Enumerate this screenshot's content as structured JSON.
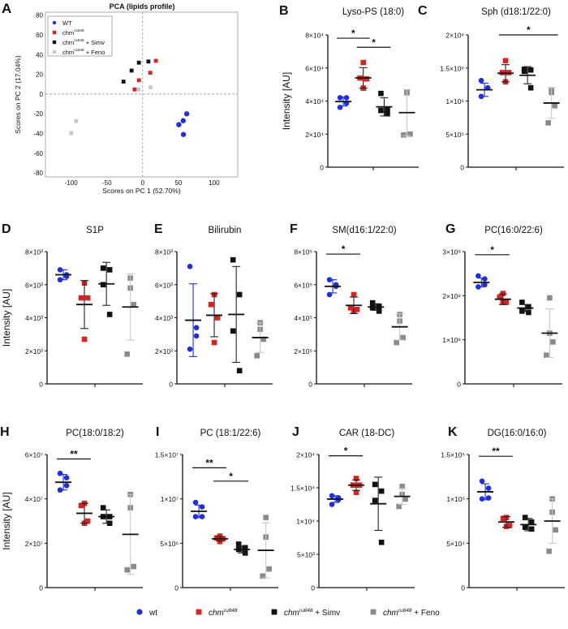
{
  "colors": {
    "wt": "#1f2fe0",
    "chm": "#d8231e",
    "simv": "#111111",
    "feno": "#8a8a8a",
    "feno_light": "#c8c8c8"
  },
  "legend": [
    {
      "key": "wt",
      "base": "wt",
      "sup": "",
      "suffix": "",
      "marker": "circle"
    },
    {
      "key": "chm",
      "base": "chm",
      "sup": "ru848",
      "suffix": "",
      "marker": "square"
    },
    {
      "key": "simv",
      "base": "chm",
      "sup": "ru848",
      "suffix": " + Simv",
      "marker": "square"
    },
    {
      "key": "feno",
      "base": "chm",
      "sup": "ru848",
      "suffix": " + Feno",
      "marker": "square"
    }
  ],
  "chart_data": [
    {
      "panel": "A",
      "type": "scatter",
      "title": "PCA (lipids profile)",
      "xlabel": "Scores on PC 1 (52.70%)",
      "ylabel": "Scores on PC 2 (17.04%)",
      "xlim": [
        -136,
        133
      ],
      "ylim": [
        -84,
        83
      ],
      "xticks": [
        -100,
        -50,
        0,
        50,
        100
      ],
      "yticks": [
        -80,
        -60,
        -40,
        -20,
        0,
        20,
        40,
        60,
        80
      ],
      "zero_lines": "dashed",
      "legend_position": "top-left",
      "series": [
        {
          "key": "wt",
          "name": "WT",
          "sup": "",
          "suffix": "",
          "marker": "circle",
          "points": [
            [
              61.6,
              -20
            ],
            [
              56.7,
              -27
            ],
            [
              50.6,
              -31
            ],
            [
              57,
              -41
            ]
          ]
        },
        {
          "key": "chm",
          "name": "chm",
          "sup": "ru848",
          "suffix": "",
          "marker": "square",
          "points": [
            [
              18.5,
              33.7
            ],
            [
              10.6,
              21.6
            ],
            [
              -5.3,
              14
            ],
            [
              -11.3,
              4.7
            ]
          ]
        },
        {
          "key": "simv",
          "name": "chm",
          "sup": "ru848",
          "suffix": " + Simv",
          "marker": "square",
          "points": [
            [
              8,
              33
            ],
            [
              -5.3,
              31.8
            ],
            [
              -15.5,
              23.8
            ],
            [
              -26.8,
              12.6
            ]
          ]
        },
        {
          "key": "feno_light",
          "name": "chm",
          "sup": "ru848",
          "suffix": " + Feno",
          "marker": "square",
          "points": [
            [
              11,
              6.8
            ],
            [
              -5.7,
              4.7
            ],
            [
              -93,
              -27.4
            ],
            [
              -100,
              -39.7
            ]
          ]
        }
      ]
    },
    {
      "panel": "B",
      "type": "scatter",
      "title": "Lyso-PS (18:0)",
      "ylabel": "Intensity [AU]",
      "ylim": [
        0,
        80000
      ],
      "yticks": [
        {
          "v": 0,
          "label": "0"
        },
        {
          "v": 20000,
          "label": "2×10⁴"
        },
        {
          "v": 40000,
          "label": "4×10⁴"
        },
        {
          "v": 60000,
          "label": "6×10⁴"
        },
        {
          "v": 80000,
          "label": "8×10⁴"
        }
      ],
      "groups": [
        {
          "key": "wt",
          "values": [
            42000,
            42000,
            38700,
            36200
          ],
          "mean": 39700,
          "sd": 2700
        },
        {
          "key": "chm",
          "values": [
            63300,
            53900,
            53400,
            47800
          ],
          "mean": 54000,
          "sd": 6200
        },
        {
          "key": "simv",
          "values": [
            44600,
            34600,
            34300,
            32300
          ],
          "mean": 36500,
          "sd": 5500
        },
        {
          "key": "feno",
          "values": [
            45300,
            45000,
            20000,
            19500
          ],
          "mean": 33000,
          "sd": 14000
        }
      ],
      "significance": [
        {
          "from": 0,
          "to": 1,
          "label": "*",
          "y": 78000
        },
        {
          "from": 1,
          "to": 2,
          "label": "*",
          "y": 72500
        }
      ]
    },
    {
      "panel": "C",
      "type": "scatter",
      "title": "Sph (d18:1/22:0)",
      "ylabel": "",
      "ylim": [
        0,
        2000000
      ],
      "yticks": [
        {
          "v": 0,
          "label": "0"
        },
        {
          "v": 500000,
          "label": "5×10⁵"
        },
        {
          "v": 1000000,
          "label": "1×10⁶"
        },
        {
          "v": 1500000,
          "label": "1.5×10⁶"
        },
        {
          "v": 2000000,
          "label": "2×10⁶"
        }
      ],
      "groups": [
        {
          "key": "wt",
          "values": [
            1310000,
            1200000,
            1200000,
            1070000
          ],
          "mean": 1170000,
          "sd": 100000
        },
        {
          "key": "chm",
          "values": [
            1610000,
            1430000,
            1430000,
            1290000
          ],
          "mean": 1420000,
          "sd": 130000
        },
        {
          "key": "simv",
          "values": [
            1480000,
            1470000,
            1450000,
            1200000
          ],
          "mean": 1390000,
          "sd": 130000
        },
        {
          "key": "feno",
          "values": [
            1170000,
            1130000,
            930000,
            670000
          ],
          "mean": 970000,
          "sd": 230000
        }
      ],
      "significance": [
        {
          "from": 1,
          "to": 3,
          "label": "*",
          "y": 2000000
        }
      ]
    },
    {
      "panel": "D",
      "type": "scatter",
      "title": "S1P",
      "ylabel": "Intensity [AU]",
      "ylim": [
        0,
        8000
      ],
      "yticks": [
        {
          "v": 0,
          "label": "0"
        },
        {
          "v": 2000,
          "label": "2×10³"
        },
        {
          "v": 4000,
          "label": "4×10³"
        },
        {
          "v": 6000,
          "label": "6×10³"
        },
        {
          "v": 8000,
          "label": "8×10³"
        }
      ],
      "groups": [
        {
          "key": "wt",
          "values": [
            6900,
            6600,
            6500,
            6300
          ],
          "mean": 6600,
          "sd": 300
        },
        {
          "key": "chm",
          "values": [
            6100,
            5200,
            5200,
            2700
          ],
          "mean": 4800,
          "sd": 1450
        },
        {
          "key": "simv",
          "values": [
            7000,
            6900,
            6000,
            4200
          ],
          "mean": 6050,
          "sd": 1300
        },
        {
          "key": "feno",
          "values": [
            6400,
            5800,
            4800,
            1800
          ],
          "mean": 4650,
          "sd": 2000
        }
      ],
      "significance": []
    },
    {
      "panel": "E",
      "type": "scatter",
      "title": "Bilirubin",
      "ylabel": "",
      "ylim": [
        0,
        8000
      ],
      "yticks": [
        {
          "v": 0,
          "label": "0"
        },
        {
          "v": 2000,
          "label": "2×10³"
        },
        {
          "v": 4000,
          "label": "4×10³"
        },
        {
          "v": 6000,
          "label": "6×10³"
        },
        {
          "v": 8000,
          "label": "8×10³"
        }
      ],
      "groups": [
        {
          "key": "wt",
          "values": [
            7100,
            3400,
            2900,
            2100
          ],
          "mean": 3850,
          "sd": 2200
        },
        {
          "key": "chm",
          "values": [
            5400,
            4800,
            4000,
            2500
          ],
          "mean": 4150,
          "sd": 1300
        },
        {
          "key": "simv",
          "values": [
            7500,
            5400,
            3200,
            800
          ],
          "mean": 4200,
          "sd": 2900
        },
        {
          "key": "feno",
          "values": [
            3700,
            3300,
            2700,
            1700
          ],
          "mean": 2800,
          "sd": 900
        }
      ],
      "significance": []
    },
    {
      "panel": "F",
      "type": "scatter",
      "title": "SM(d16:1/22:0)",
      "ylabel": "",
      "ylim": [
        0,
        800000
      ],
      "yticks": [
        {
          "v": 0,
          "label": "0"
        },
        {
          "v": 200000,
          "label": "2×10⁵"
        },
        {
          "v": 400000,
          "label": "4×10⁵"
        },
        {
          "v": 600000,
          "label": "6×10⁵"
        },
        {
          "v": 800000,
          "label": "8×10⁵"
        }
      ],
      "groups": [
        {
          "key": "wt",
          "values": [
            630000,
            600000,
            590000,
            540000
          ],
          "mean": 590000,
          "sd": 40000
        },
        {
          "key": "chm",
          "values": [
            540000,
            460000,
            450000,
            440000
          ],
          "mean": 475000,
          "sd": 50000
        },
        {
          "key": "simv",
          "values": [
            490000,
            470000,
            460000,
            440000
          ],
          "mean": 465000,
          "sd": 20000
        },
        {
          "key": "feno",
          "values": [
            420000,
            380000,
            280000,
            250000
          ],
          "mean": 345000,
          "sd": 80000
        }
      ],
      "significance": [
        {
          "from": 0,
          "to": 1,
          "label": "*",
          "y": 785000
        }
      ]
    },
    {
      "panel": "G",
      "type": "scatter",
      "title": "PC(16:0/22:6)",
      "ylabel": "",
      "ylim": [
        0,
        300000000
      ],
      "yticks": [
        {
          "v": 0,
          "label": "0"
        },
        {
          "v": 100000000,
          "label": "1×10⁸"
        },
        {
          "v": 200000000,
          "label": "2×10⁸"
        },
        {
          "v": 300000000,
          "label": "3×10⁸"
        }
      ],
      "groups": [
        {
          "key": "wt",
          "values": [
            245000000,
            238000000,
            225000000,
            220000000
          ],
          "mean": 230000000,
          "sd": 10000000
        },
        {
          "key": "chm",
          "values": [
            205000000,
            197000000,
            185000000,
            185000000
          ],
          "mean": 192000000,
          "sd": 12000000
        },
        {
          "key": "simv",
          "values": [
            185000000,
            175000000,
            165000000,
            162000000
          ],
          "mean": 172000000,
          "sd": 8000000
        },
        {
          "key": "feno",
          "values": [
            195000000,
            115000000,
            95000000,
            65000000
          ],
          "mean": 115000000,
          "sd": 55000000
        }
      ],
      "significance": [
        {
          "from": 0,
          "to": 1,
          "label": "*",
          "y": 293000000
        }
      ]
    },
    {
      "panel": "H",
      "type": "scatter",
      "title": "PC(18:0/18:2)",
      "ylabel": "Intensity [AU]",
      "ylim": [
        0,
        60000000
      ],
      "yticks": [
        {
          "v": 0,
          "label": "0"
        },
        {
          "v": 20000000,
          "label": "2×10⁷"
        },
        {
          "v": 40000000,
          "label": "4×10⁷"
        },
        {
          "v": 60000000,
          "label": "6×10⁷"
        }
      ],
      "groups": [
        {
          "key": "wt",
          "values": [
            51500000,
            49500000,
            46000000,
            44000000
          ],
          "mean": 47500000,
          "sd": 3500000
        },
        {
          "key": "chm",
          "values": [
            38000000,
            37000000,
            30000000,
            29000000
          ],
          "mean": 33500000,
          "sd": 4500000
        },
        {
          "key": "simv",
          "values": [
            36000000,
            32000000,
            32000000,
            29000000
          ],
          "mean": 32000000,
          "sd": 3000000
        },
        {
          "key": "feno",
          "values": [
            42000000,
            36000000,
            9500000,
            8000000
          ],
          "mean": 24000000,
          "sd": 18000000
        }
      ],
      "significance": [
        {
          "from": 0,
          "to": 1,
          "label": "**",
          "y": 58000000
        }
      ]
    },
    {
      "panel": "I",
      "type": "scatter",
      "title": "PC (18:1/22:6)",
      "ylabel": "",
      "ylim": [
        0,
        15000000
      ],
      "yticks": [
        {
          "v": 0,
          "label": "0"
        },
        {
          "v": 5000000,
          "label": "5×10⁶"
        },
        {
          "v": 10000000,
          "label": "1×10⁷"
        },
        {
          "v": 15000000,
          "label": "1.5×10⁷"
        }
      ],
      "groups": [
        {
          "key": "wt",
          "values": [
            9600000,
            9100000,
            8000000,
            8000000
          ],
          "mean": 8600000,
          "sd": 700000
        },
        {
          "key": "chm",
          "values": [
            5800000,
            5600000,
            5500000,
            5200000
          ],
          "mean": 5500000,
          "sd": 250000
        },
        {
          "key": "simv",
          "values": [
            4900000,
            4500000,
            4300000,
            3900000
          ],
          "mean": 4300000,
          "sd": 400000
        },
        {
          "key": "feno",
          "values": [
            7900000,
            5700000,
            2100000,
            1300000
          ],
          "mean": 4200000,
          "sd": 3100000
        }
      ],
      "significance": [
        {
          "from": 0,
          "to": 1,
          "label": "**",
          "y": 13500000
        },
        {
          "from": 1,
          "to": 2,
          "label": "*",
          "y": 12000000
        }
      ]
    },
    {
      "panel": "J",
      "type": "scatter",
      "title": "CAR (18-DC)",
      "ylabel": "",
      "ylim": [
        0,
        20000
      ],
      "yticks": [
        {
          "v": 0,
          "label": "0"
        },
        {
          "v": 5000,
          "label": "5×10³"
        },
        {
          "v": 10000,
          "label": "1×10⁴"
        },
        {
          "v": 15000,
          "label": "1.5×10⁴"
        },
        {
          "v": 20000,
          "label": "2×10⁴"
        }
      ],
      "groups": [
        {
          "key": "wt",
          "values": [
            13800,
            13500,
            13200,
            12500
          ],
          "mean": 13300,
          "sd": 500
        },
        {
          "key": "chm",
          "values": [
            16400,
            15400,
            15400,
            14300
          ],
          "mean": 15400,
          "sd": 800
        },
        {
          "key": "simv",
          "values": [
            15500,
            14500,
            13100,
            6800
          ],
          "mean": 12600,
          "sd": 4000
        },
        {
          "key": "feno",
          "values": [
            15200,
            14000,
            13300,
            12200
          ],
          "mean": 13700,
          "sd": 1200
        }
      ],
      "significance": [
        {
          "from": 0,
          "to": 1,
          "label": "*",
          "y": 19800
        }
      ]
    },
    {
      "panel": "K",
      "type": "scatter",
      "title": "DG(16:0/16:0)",
      "ylabel": "",
      "ylim": [
        0,
        150000
      ],
      "yticks": [
        {
          "v": 0,
          "label": "0"
        },
        {
          "v": 50000,
          "label": "5×10⁴"
        },
        {
          "v": 100000,
          "label": "1×10⁵"
        },
        {
          "v": 150000,
          "label": "1.5×10⁵"
        }
      ],
      "groups": [
        {
          "key": "wt",
          "values": [
            120000,
            112000,
            101000,
            100000
          ],
          "mean": 108000,
          "sd": 9000
        },
        {
          "key": "chm",
          "values": [
            79000,
            78000,
            70000,
            69000
          ],
          "mean": 74000,
          "sd": 6000
        },
        {
          "key": "simv",
          "values": [
            79000,
            74000,
            68000,
            66000
          ],
          "mean": 71000,
          "sd": 7000
        },
        {
          "key": "feno",
          "values": [
            100000,
            85000,
            65000,
            41000
          ],
          "mean": 75000,
          "sd": 25000
        }
      ],
      "significance": [
        {
          "from": 0,
          "to": 1,
          "label": "**",
          "y": 148000
        }
      ]
    }
  ]
}
